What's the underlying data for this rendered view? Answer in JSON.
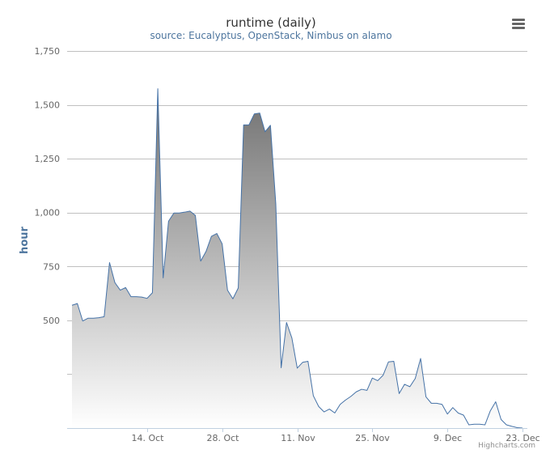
{
  "chart_data": {
    "type": "area",
    "title": "runtime (daily)",
    "subtitle": "source: Eucalyptus, OpenStack, Nimbus on alamo",
    "xlabel": "",
    "ylabel": "hour",
    "xlim": [
      "2013-09-30",
      "2013-12-23"
    ],
    "ylim": [
      0,
      1750
    ],
    "y_ticks": [
      {
        "value": 500,
        "label": "500"
      },
      {
        "value": 750,
        "label": "750"
      },
      {
        "value": 1000,
        "label": "1,000"
      },
      {
        "value": 1250,
        "label": "1,250"
      },
      {
        "value": 1500,
        "label": "1,500"
      },
      {
        "value": 1750,
        "label": "1,750"
      }
    ],
    "gridlines_y": [
      250,
      500,
      750,
      1000,
      1250,
      1500,
      1750
    ],
    "x_ticks": [
      {
        "date": "2013-10-14",
        "label": "14. Oct"
      },
      {
        "date": "2013-10-28",
        "label": "28. Oct"
      },
      {
        "date": "2013-11-11",
        "label": "11. Nov"
      },
      {
        "date": "2013-11-25",
        "label": "25. Nov"
      },
      {
        "date": "2013-12-09",
        "label": "9. Dec"
      },
      {
        "date": "2013-12-23",
        "label": "23. Dec"
      }
    ],
    "grid": true,
    "legend": "none",
    "series": [
      {
        "color": "#4572a7",
        "points": [
          [
            "2013-09-30",
            570
          ],
          [
            "2013-10-01",
            578
          ],
          [
            "2013-10-02",
            497
          ],
          [
            "2013-10-03",
            510
          ],
          [
            "2013-10-04",
            510
          ],
          [
            "2013-10-05",
            512
          ],
          [
            "2013-10-06",
            517
          ],
          [
            "2013-10-07",
            768
          ],
          [
            "2013-10-08",
            675
          ],
          [
            "2013-10-09",
            640
          ],
          [
            "2013-10-10",
            652
          ],
          [
            "2013-10-11",
            610
          ],
          [
            "2013-10-12",
            610
          ],
          [
            "2013-10-13",
            608
          ],
          [
            "2013-10-14",
            602
          ],
          [
            "2013-10-15",
            628
          ],
          [
            "2013-10-16",
            1575
          ],
          [
            "2013-10-17",
            697
          ],
          [
            "2013-10-18",
            960
          ],
          [
            "2013-10-19",
            998
          ],
          [
            "2013-10-20",
            998
          ],
          [
            "2013-10-21",
            1002
          ],
          [
            "2013-10-22",
            1007
          ],
          [
            "2013-10-23",
            987
          ],
          [
            "2013-10-24",
            775
          ],
          [
            "2013-10-25",
            820
          ],
          [
            "2013-10-26",
            890
          ],
          [
            "2013-10-27",
            903
          ],
          [
            "2013-10-28",
            855
          ],
          [
            "2013-10-29",
            640
          ],
          [
            "2013-10-30",
            600
          ],
          [
            "2013-10-31",
            650
          ],
          [
            "2013-11-01",
            1407
          ],
          [
            "2013-11-02",
            1407
          ],
          [
            "2013-11-03",
            1458
          ],
          [
            "2013-11-04",
            1462
          ],
          [
            "2013-11-05",
            1375
          ],
          [
            "2013-11-06",
            1405
          ],
          [
            "2013-11-07",
            1040
          ],
          [
            "2013-11-08",
            280
          ],
          [
            "2013-11-09",
            490
          ],
          [
            "2013-11-10",
            418
          ],
          [
            "2013-11-11",
            278
          ],
          [
            "2013-11-12",
            305
          ],
          [
            "2013-11-13",
            310
          ],
          [
            "2013-11-14",
            150
          ],
          [
            "2013-11-15",
            100
          ],
          [
            "2013-11-16",
            75
          ],
          [
            "2013-11-17",
            88
          ],
          [
            "2013-11-18",
            70
          ],
          [
            "2013-11-19",
            110
          ],
          [
            "2013-11-20",
            130
          ],
          [
            "2013-11-21",
            147
          ],
          [
            "2013-11-22",
            168
          ],
          [
            "2013-11-23",
            180
          ],
          [
            "2013-11-24",
            175
          ],
          [
            "2013-11-25",
            232
          ],
          [
            "2013-11-26",
            220
          ],
          [
            "2013-11-27",
            245
          ],
          [
            "2013-11-28",
            307
          ],
          [
            "2013-11-29",
            310
          ],
          [
            "2013-11-30",
            160
          ],
          [
            "2013-12-01",
            203
          ],
          [
            "2013-12-02",
            192
          ],
          [
            "2013-12-03",
            230
          ],
          [
            "2013-12-04",
            323
          ],
          [
            "2013-12-05",
            145
          ],
          [
            "2013-12-06",
            115
          ],
          [
            "2013-12-07",
            115
          ],
          [
            "2013-12-08",
            110
          ],
          [
            "2013-12-09",
            65
          ],
          [
            "2013-12-10",
            95
          ],
          [
            "2013-12-11",
            70
          ],
          [
            "2013-12-12",
            60
          ],
          [
            "2013-12-13",
            15
          ],
          [
            "2013-12-14",
            18
          ],
          [
            "2013-12-15",
            18
          ],
          [
            "2013-12-16",
            15
          ],
          [
            "2013-12-17",
            80
          ],
          [
            "2013-12-18",
            122
          ],
          [
            "2013-12-19",
            40
          ],
          [
            "2013-12-20",
            15
          ],
          [
            "2013-12-21",
            8
          ],
          [
            "2013-12-22",
            2
          ],
          [
            "2013-12-23",
            0
          ]
        ]
      }
    ]
  },
  "credits": "Highcharts.com",
  "menu_icon": "menu-icon"
}
